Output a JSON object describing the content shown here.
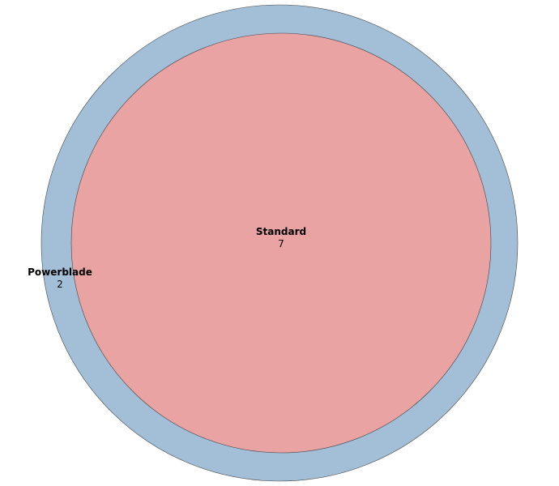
{
  "chart_data": {
    "type": "bubble",
    "title": "",
    "items": [
      {
        "name": "Powerblade",
        "value": 2,
        "color": "#a2bfd7"
      },
      {
        "name": "Standard",
        "value": 7,
        "color": "#e9a3a3"
      }
    ],
    "legend": "none",
    "grid": false
  }
}
